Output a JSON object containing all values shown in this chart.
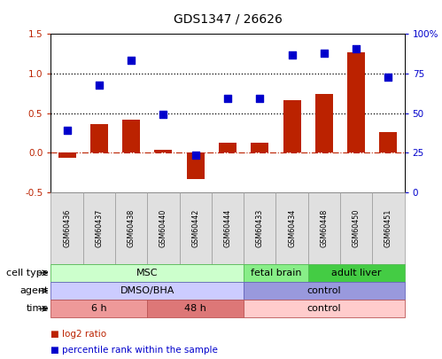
{
  "title": "GDS1347 / 26626",
  "samples": [
    "GSM60436",
    "GSM60437",
    "GSM60438",
    "GSM60440",
    "GSM60442",
    "GSM60444",
    "GSM60433",
    "GSM60434",
    "GSM60448",
    "GSM60450",
    "GSM60451"
  ],
  "log2_ratio": [
    -0.07,
    0.36,
    0.42,
    0.03,
    -0.33,
    0.13,
    0.13,
    0.66,
    0.74,
    1.27,
    0.26
  ],
  "percentile_rank_left": [
    0.28,
    0.85,
    1.17,
    0.48,
    -0.03,
    0.69,
    0.69,
    1.24,
    1.26,
    1.31,
    0.95
  ],
  "bar_color": "#bb2200",
  "dot_color": "#0000cc",
  "left_ylim": [
    -0.5,
    1.5
  ],
  "right_ylim": [
    0,
    100
  ],
  "left_yticks": [
    -0.5,
    0.0,
    0.5,
    1.0,
    1.5
  ],
  "right_yticks": [
    0,
    25,
    50,
    75,
    100
  ],
  "hline_vals": [
    0.5,
    1.0
  ],
  "zero_val": 0.0,
  "cell_type_groups": [
    {
      "label": "MSC",
      "start": 0,
      "end": 5,
      "color": "#ccffcc",
      "edge": "#55bb55"
    },
    {
      "label": "fetal brain",
      "start": 6,
      "end": 7,
      "color": "#88ee88",
      "edge": "#55bb55"
    },
    {
      "label": "adult liver",
      "start": 8,
      "end": 10,
      "color": "#44cc44",
      "edge": "#55bb55"
    }
  ],
  "agent_groups": [
    {
      "label": "DMSO/BHA",
      "start": 0,
      "end": 5,
      "color": "#ccccff",
      "edge": "#6666bb"
    },
    {
      "label": "control",
      "start": 6,
      "end": 10,
      "color": "#9999dd",
      "edge": "#6666bb"
    }
  ],
  "time_groups": [
    {
      "label": "6 h",
      "start": 0,
      "end": 2,
      "color": "#ee9999",
      "edge": "#bb5555"
    },
    {
      "label": "48 h",
      "start": 3,
      "end": 5,
      "color": "#dd7777",
      "edge": "#bb5555"
    },
    {
      "label": "control",
      "start": 6,
      "end": 10,
      "color": "#ffcccc",
      "edge": "#bb5555"
    }
  ],
  "row_labels": [
    "cell type",
    "agent",
    "time"
  ],
  "legend_items": [
    {
      "color": "#bb2200",
      "label": "log2 ratio"
    },
    {
      "color": "#0000cc",
      "label": "percentile rank within the sample"
    }
  ],
  "bar_width": 0.55,
  "dot_size": 28,
  "title_fontsize": 10,
  "tick_fontsize": 7.5,
  "table_fontsize": 8,
  "row_label_fontsize": 8,
  "legend_fontsize": 7.5,
  "gsm_fontsize": 5.8
}
